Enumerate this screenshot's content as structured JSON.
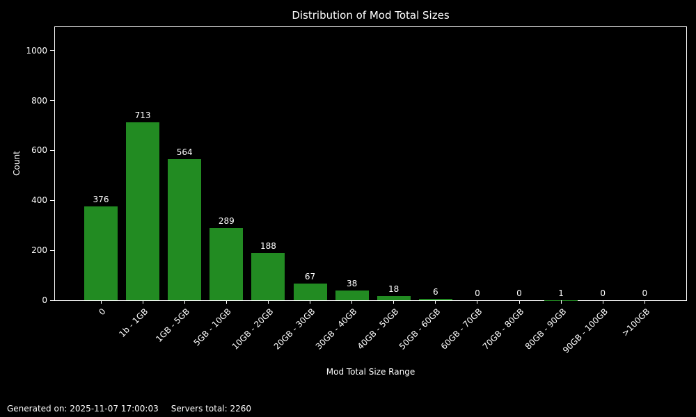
{
  "title": "Distribution of Mod Total Sizes",
  "footer": {
    "generated": "Generated on: 2025-11-07 17:00:03",
    "servers_total": "Servers total: 2260"
  },
  "chart_data": {
    "type": "bar",
    "title": "Distribution of Mod Total Sizes",
    "categories": [
      "0",
      "1b - 1GB",
      "1GB - 5GB",
      "5GB - 10GB",
      "10GB - 20GB",
      "20GB - 30GB",
      "30GB - 40GB",
      "40GB - 50GB",
      "50GB - 60GB",
      "60GB - 70GB",
      "70GB - 80GB",
      "80GB - 90GB",
      "90GB - 100GB",
      ">100GB"
    ],
    "values": [
      376,
      713,
      564,
      289,
      188,
      67,
      38,
      18,
      6,
      0,
      0,
      1,
      0,
      0
    ],
    "xlabel": "Mod Total Size Range",
    "ylabel": "Count",
    "ylim": [
      0,
      1094
    ],
    "yticks": [
      0,
      200,
      400,
      600,
      800,
      1000
    ],
    "bar_color": "#228B22",
    "background": "#000000",
    "text_color": "#ffffff",
    "grid": false,
    "legend": null
  }
}
